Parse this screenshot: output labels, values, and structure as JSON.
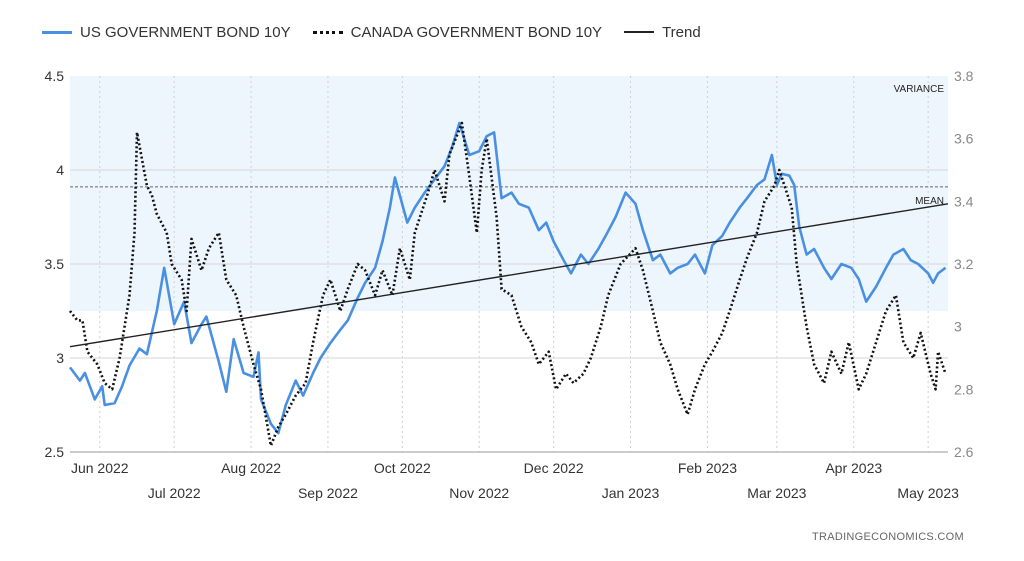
{
  "chart_data": {
    "type": "line",
    "title": "",
    "x_range": [
      "2022-05-20",
      "2023-05-09"
    ],
    "y_left": {
      "range": [
        2.5,
        4.5
      ],
      "ticks": [
        "4.5",
        "4",
        "3.5",
        "3",
        "2.5"
      ]
    },
    "y_right": {
      "range": [
        2.6,
        3.8
      ],
      "ticks": [
        "3.8",
        "3.6",
        "3.4",
        "3.2",
        "3",
        "2.8",
        "2.6"
      ]
    },
    "x_ticks_top_row": [
      "Jun 2022",
      "Aug 2022",
      "Oct 2022",
      "Dec 2022",
      "Feb 2023",
      "Apr 2023"
    ],
    "x_ticks_bottom_row": [
      "Jul 2022",
      "Sep 2022",
      "Nov 2022",
      "Jan 2023",
      "Mar 2023",
      "May 2023"
    ],
    "mean": 3.91,
    "variance_band": [
      3.25,
      4.5
    ],
    "band_labels": {
      "variance": "VARIANCE",
      "mean": "MEAN"
    },
    "series": [
      {
        "name": "US GOVERNMENT BOND 10Y",
        "color": "#4a90e2",
        "axis": "left",
        "points": [
          [
            "2022-05-20",
            2.95
          ],
          [
            "2022-05-24",
            2.88
          ],
          [
            "2022-05-26",
            2.92
          ],
          [
            "2022-05-30",
            2.78
          ],
          [
            "2022-06-02",
            2.85
          ],
          [
            "2022-06-03",
            2.75
          ],
          [
            "2022-06-07",
            2.76
          ],
          [
            "2022-06-10",
            2.85
          ],
          [
            "2022-06-13",
            2.96
          ],
          [
            "2022-06-17",
            3.05
          ],
          [
            "2022-06-20",
            3.02
          ],
          [
            "2022-06-24",
            3.25
          ],
          [
            "2022-06-27",
            3.48
          ],
          [
            "2022-07-01",
            3.18
          ],
          [
            "2022-07-05",
            3.3
          ],
          [
            "2022-07-08",
            3.08
          ],
          [
            "2022-07-12",
            3.18
          ],
          [
            "2022-07-14",
            3.22
          ],
          [
            "2022-07-19",
            2.98
          ],
          [
            "2022-07-22",
            2.82
          ],
          [
            "2022-07-25",
            3.1
          ],
          [
            "2022-07-29",
            2.92
          ],
          [
            "2022-08-02",
            2.9
          ],
          [
            "2022-08-04",
            3.03
          ],
          [
            "2022-08-05",
            2.78
          ],
          [
            "2022-08-09",
            2.65
          ],
          [
            "2022-08-12",
            2.6
          ],
          [
            "2022-08-15",
            2.75
          ],
          [
            "2022-08-19",
            2.88
          ],
          [
            "2022-08-22",
            2.8
          ],
          [
            "2022-08-26",
            2.92
          ],
          [
            "2022-08-29",
            3.0
          ],
          [
            "2022-09-02",
            3.08
          ],
          [
            "2022-09-06",
            3.15
          ],
          [
            "2022-09-09",
            3.2
          ],
          [
            "2022-09-13",
            3.32
          ],
          [
            "2022-09-16",
            3.4
          ],
          [
            "2022-09-20",
            3.48
          ],
          [
            "2022-09-23",
            3.62
          ],
          [
            "2022-09-26",
            3.8
          ],
          [
            "2022-09-28",
            3.96
          ],
          [
            "2022-10-03",
            3.72
          ],
          [
            "2022-10-06",
            3.8
          ],
          [
            "2022-10-10",
            3.88
          ],
          [
            "2022-10-14",
            3.95
          ],
          [
            "2022-10-18",
            4.02
          ],
          [
            "2022-10-21",
            4.12
          ],
          [
            "2022-10-24",
            4.25
          ],
          [
            "2022-10-28",
            4.08
          ],
          [
            "2022-11-01",
            4.1
          ],
          [
            "2022-11-04",
            4.18
          ],
          [
            "2022-11-07",
            4.2
          ],
          [
            "2022-11-10",
            3.85
          ],
          [
            "2022-11-14",
            3.88
          ],
          [
            "2022-11-17",
            3.82
          ],
          [
            "2022-11-21",
            3.8
          ],
          [
            "2022-11-25",
            3.68
          ],
          [
            "2022-11-28",
            3.72
          ],
          [
            "2022-12-01",
            3.62
          ],
          [
            "2022-12-05",
            3.52
          ],
          [
            "2022-12-08",
            3.45
          ],
          [
            "2022-12-12",
            3.55
          ],
          [
            "2022-12-15",
            3.5
          ],
          [
            "2022-12-19",
            3.58
          ],
          [
            "2022-12-22",
            3.65
          ],
          [
            "2022-12-26",
            3.75
          ],
          [
            "2022-12-30",
            3.88
          ],
          [
            "2023-01-03",
            3.82
          ],
          [
            "2023-01-06",
            3.68
          ],
          [
            "2023-01-10",
            3.52
          ],
          [
            "2023-01-13",
            3.55
          ],
          [
            "2023-01-17",
            3.45
          ],
          [
            "2023-01-20",
            3.48
          ],
          [
            "2023-01-24",
            3.5
          ],
          [
            "2023-01-27",
            3.55
          ],
          [
            "2023-01-31",
            3.45
          ],
          [
            "2023-02-03",
            3.6
          ],
          [
            "2023-02-07",
            3.65
          ],
          [
            "2023-02-10",
            3.72
          ],
          [
            "2023-02-14",
            3.8
          ],
          [
            "2023-02-17",
            3.85
          ],
          [
            "2023-02-21",
            3.92
          ],
          [
            "2023-02-24",
            3.95
          ],
          [
            "2023-02-27",
            4.08
          ],
          [
            "2023-03-01",
            3.92
          ],
          [
            "2023-03-03",
            3.98
          ],
          [
            "2023-03-06",
            3.97
          ],
          [
            "2023-03-08",
            3.92
          ],
          [
            "2023-03-10",
            3.7
          ],
          [
            "2023-03-13",
            3.55
          ],
          [
            "2023-03-16",
            3.58
          ],
          [
            "2023-03-20",
            3.48
          ],
          [
            "2023-03-23",
            3.42
          ],
          [
            "2023-03-27",
            3.5
          ],
          [
            "2023-03-31",
            3.48
          ],
          [
            "2023-04-03",
            3.42
          ],
          [
            "2023-04-06",
            3.3
          ],
          [
            "2023-04-10",
            3.38
          ],
          [
            "2023-04-14",
            3.48
          ],
          [
            "2023-04-17",
            3.55
          ],
          [
            "2023-04-21",
            3.58
          ],
          [
            "2023-04-24",
            3.52
          ],
          [
            "2023-04-27",
            3.5
          ],
          [
            "2023-05-01",
            3.45
          ],
          [
            "2023-05-03",
            3.4
          ],
          [
            "2023-05-05",
            3.45
          ],
          [
            "2023-05-08",
            3.48
          ]
        ]
      },
      {
        "name": "CANADA GOVERNMENT BOND 10Y",
        "color": "#111111",
        "axis": "right",
        "points": [
          [
            "2022-05-20",
            3.05
          ],
          [
            "2022-05-23",
            3.02
          ],
          [
            "2022-05-25",
            3.02
          ],
          [
            "2022-05-27",
            2.92
          ],
          [
            "2022-05-31",
            2.88
          ],
          [
            "2022-06-03",
            2.82
          ],
          [
            "2022-06-06",
            2.8
          ],
          [
            "2022-06-09",
            2.9
          ],
          [
            "2022-06-13",
            3.1
          ],
          [
            "2022-06-15",
            3.3
          ],
          [
            "2022-06-16",
            3.62
          ],
          [
            "2022-06-20",
            3.45
          ],
          [
            "2022-06-22",
            3.42
          ],
          [
            "2022-06-24",
            3.36
          ],
          [
            "2022-06-28",
            3.3
          ],
          [
            "2022-06-30",
            3.2
          ],
          [
            "2022-07-04",
            3.15
          ],
          [
            "2022-07-06",
            3.05
          ],
          [
            "2022-07-08",
            3.28
          ],
          [
            "2022-07-12",
            3.18
          ],
          [
            "2022-07-15",
            3.25
          ],
          [
            "2022-07-19",
            3.3
          ],
          [
            "2022-07-22",
            3.15
          ],
          [
            "2022-07-26",
            3.1
          ],
          [
            "2022-07-29",
            3.0
          ],
          [
            "2022-08-02",
            2.88
          ],
          [
            "2022-08-05",
            2.8
          ],
          [
            "2022-08-09",
            2.62
          ],
          [
            "2022-08-12",
            2.68
          ],
          [
            "2022-08-15",
            2.72
          ],
          [
            "2022-08-19",
            2.78
          ],
          [
            "2022-08-23",
            2.82
          ],
          [
            "2022-08-26",
            2.95
          ],
          [
            "2022-08-30",
            3.1
          ],
          [
            "2022-09-02",
            3.15
          ],
          [
            "2022-09-06",
            3.05
          ],
          [
            "2022-09-09",
            3.12
          ],
          [
            "2022-09-13",
            3.2
          ],
          [
            "2022-09-16",
            3.18
          ],
          [
            "2022-09-20",
            3.1
          ],
          [
            "2022-09-23",
            3.18
          ],
          [
            "2022-09-27",
            3.1
          ],
          [
            "2022-09-30",
            3.25
          ],
          [
            "2022-10-04",
            3.15
          ],
          [
            "2022-10-06",
            3.3
          ],
          [
            "2022-10-11",
            3.42
          ],
          [
            "2022-10-14",
            3.5
          ],
          [
            "2022-10-18",
            3.4
          ],
          [
            "2022-10-20",
            3.55
          ],
          [
            "2022-10-25",
            3.65
          ],
          [
            "2022-10-28",
            3.48
          ],
          [
            "2022-10-31",
            3.3
          ],
          [
            "2022-11-02",
            3.5
          ],
          [
            "2022-11-04",
            3.6
          ],
          [
            "2022-11-08",
            3.35
          ],
          [
            "2022-11-10",
            3.12
          ],
          [
            "2022-11-14",
            3.1
          ],
          [
            "2022-11-18",
            3.0
          ],
          [
            "2022-11-22",
            2.95
          ],
          [
            "2022-11-25",
            2.88
          ],
          [
            "2022-11-29",
            2.92
          ],
          [
            "2022-12-02",
            2.8
          ],
          [
            "2022-12-06",
            2.85
          ],
          [
            "2022-12-09",
            2.82
          ],
          [
            "2022-12-13",
            2.85
          ],
          [
            "2022-12-16",
            2.9
          ],
          [
            "2022-12-20",
            3.0
          ],
          [
            "2022-12-23",
            3.1
          ],
          [
            "2022-12-28",
            3.2
          ],
          [
            "2023-01-03",
            3.25
          ],
          [
            "2023-01-06",
            3.18
          ],
          [
            "2023-01-10",
            3.05
          ],
          [
            "2023-01-13",
            2.95
          ],
          [
            "2023-01-17",
            2.88
          ],
          [
            "2023-01-20",
            2.8
          ],
          [
            "2023-01-24",
            2.72
          ],
          [
            "2023-01-27",
            2.8
          ],
          [
            "2023-01-31",
            2.88
          ],
          [
            "2023-02-03",
            2.92
          ],
          [
            "2023-02-07",
            2.98
          ],
          [
            "2023-02-10",
            3.05
          ],
          [
            "2023-02-14",
            3.15
          ],
          [
            "2023-02-17",
            3.22
          ],
          [
            "2023-02-21",
            3.3
          ],
          [
            "2023-02-24",
            3.4
          ],
          [
            "2023-02-28",
            3.45
          ],
          [
            "2023-03-02",
            3.5
          ],
          [
            "2023-03-07",
            3.38
          ],
          [
            "2023-03-09",
            3.2
          ],
          [
            "2023-03-13",
            3.0
          ],
          [
            "2023-03-16",
            2.88
          ],
          [
            "2023-03-20",
            2.82
          ],
          [
            "2023-03-23",
            2.92
          ],
          [
            "2023-03-27",
            2.85
          ],
          [
            "2023-03-30",
            2.95
          ],
          [
            "2023-04-03",
            2.8
          ],
          [
            "2023-04-06",
            2.85
          ],
          [
            "2023-04-10",
            2.95
          ],
          [
            "2023-04-14",
            3.05
          ],
          [
            "2023-04-18",
            3.1
          ],
          [
            "2023-04-21",
            2.95
          ],
          [
            "2023-04-25",
            2.9
          ],
          [
            "2023-04-28",
            2.98
          ],
          [
            "2023-05-02",
            2.85
          ],
          [
            "2023-05-04",
            2.8
          ],
          [
            "2023-05-05",
            2.92
          ],
          [
            "2023-05-08",
            2.85
          ]
        ]
      },
      {
        "name": "Trend",
        "color": "#222222",
        "axis": "left",
        "points": [
          [
            "2022-05-20",
            3.06
          ],
          [
            "2023-05-09",
            3.82
          ]
        ]
      }
    ]
  }
}
